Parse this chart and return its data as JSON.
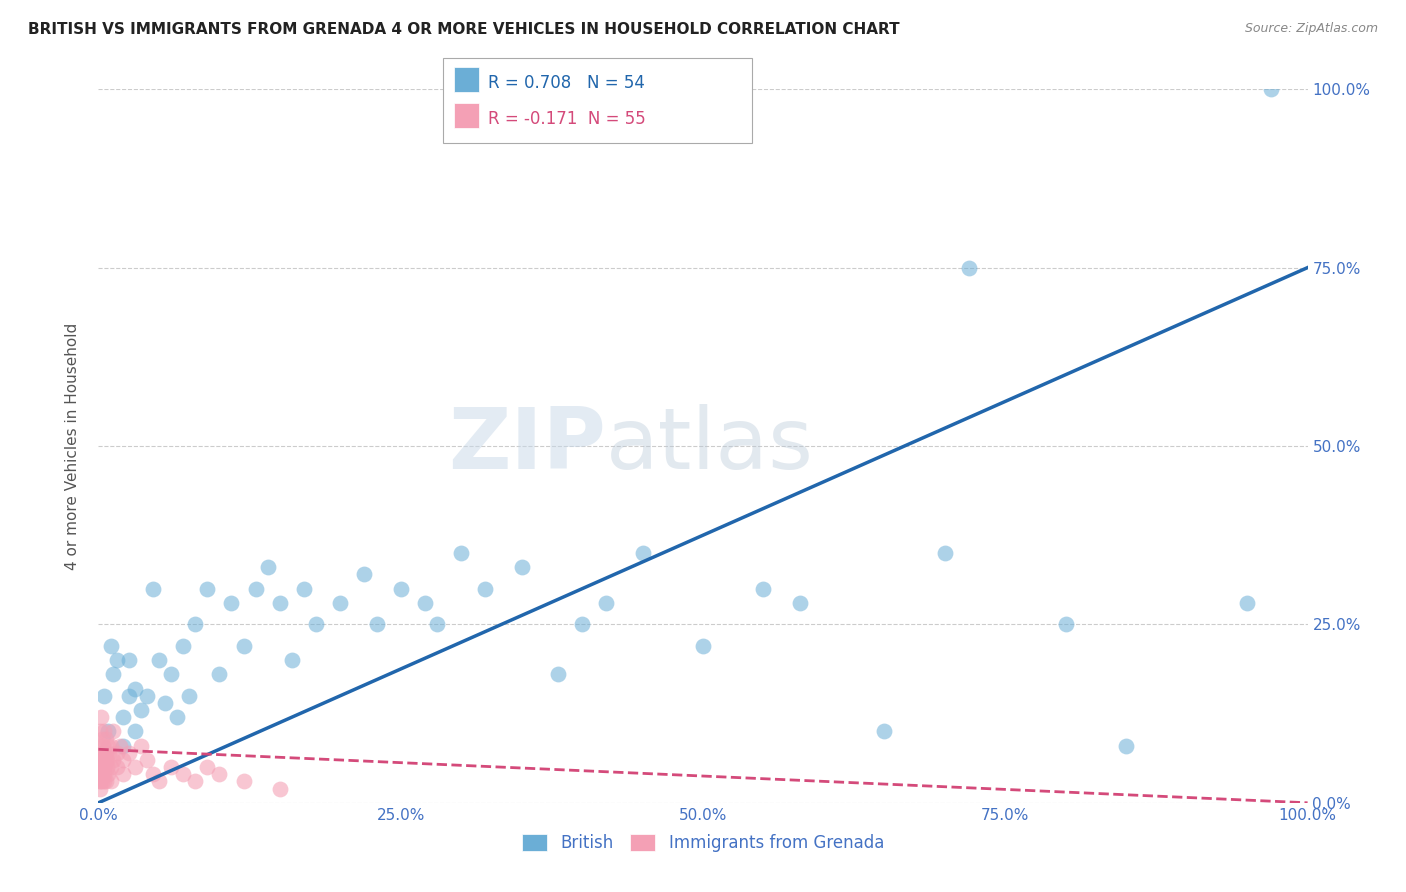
{
  "title": "BRITISH VS IMMIGRANTS FROM GRENADA 4 OR MORE VEHICLES IN HOUSEHOLD CORRELATION CHART",
  "source": "Source: ZipAtlas.com",
  "ylabel": "4 or more Vehicles in Household",
  "legend_entry1": "R = 0.708   N = 54",
  "legend_entry2": "R = -0.171  N = 55",
  "legend_label1": "British",
  "legend_label2": "Immigrants from Grenada",
  "british_color": "#6baed6",
  "grenada_color": "#f4a0b5",
  "british_line_color": "#2166ac",
  "grenada_line_color": "#d44a7a",
  "watermark_zip": "ZIP",
  "watermark_atlas": "atlas",
  "british_x": [
    0.5,
    0.8,
    1.0,
    1.2,
    1.5,
    2.0,
    2.0,
    2.5,
    2.5,
    3.0,
    3.0,
    3.5,
    4.0,
    4.5,
    5.0,
    5.5,
    6.0,
    6.5,
    7.0,
    7.5,
    8.0,
    9.0,
    10.0,
    11.0,
    12.0,
    13.0,
    14.0,
    15.0,
    16.0,
    17.0,
    18.0,
    20.0,
    22.0,
    23.0,
    25.0,
    27.0,
    28.0,
    30.0,
    32.0,
    35.0,
    38.0,
    40.0,
    42.0,
    45.0,
    50.0,
    55.0,
    58.0,
    65.0,
    70.0,
    72.0,
    80.0,
    85.0,
    95.0,
    97.0
  ],
  "british_y": [
    15.0,
    10.0,
    22.0,
    18.0,
    20.0,
    12.0,
    8.0,
    15.0,
    20.0,
    10.0,
    16.0,
    13.0,
    15.0,
    30.0,
    20.0,
    14.0,
    18.0,
    12.0,
    22.0,
    15.0,
    25.0,
    30.0,
    18.0,
    28.0,
    22.0,
    30.0,
    33.0,
    28.0,
    20.0,
    30.0,
    25.0,
    28.0,
    32.0,
    25.0,
    30.0,
    28.0,
    25.0,
    35.0,
    30.0,
    33.0,
    18.0,
    25.0,
    28.0,
    35.0,
    22.0,
    30.0,
    28.0,
    10.0,
    35.0,
    75.0,
    25.0,
    8.0,
    28.0,
    100.0
  ],
  "grenada_x": [
    0.05,
    0.1,
    0.1,
    0.15,
    0.2,
    0.2,
    0.2,
    0.3,
    0.3,
    0.3,
    0.3,
    0.4,
    0.4,
    0.5,
    0.5,
    0.5,
    0.6,
    0.6,
    0.7,
    0.8,
    0.8,
    0.9,
    1.0,
    1.0,
    1.0,
    1.2,
    1.2,
    1.5,
    1.5,
    1.8,
    2.0,
    2.0,
    2.5,
    3.0,
    3.5,
    4.0,
    4.5,
    5.0,
    6.0,
    7.0,
    8.0,
    9.0,
    10.0,
    12.0,
    15.0,
    0.1,
    0.2,
    0.3,
    0.15,
    0.25,
    0.35,
    0.45,
    0.55,
    0.65,
    0.75
  ],
  "grenada_y": [
    5.0,
    8.0,
    3.0,
    10.0,
    6.0,
    12.0,
    4.0,
    7.0,
    5.0,
    9.0,
    3.0,
    8.0,
    6.0,
    10.0,
    5.0,
    3.0,
    7.0,
    9.0,
    6.0,
    8.0,
    4.0,
    7.0,
    5.0,
    8.0,
    3.0,
    6.0,
    10.0,
    7.0,
    5.0,
    8.0,
    6.0,
    4.0,
    7.0,
    5.0,
    8.0,
    6.0,
    4.0,
    3.0,
    5.0,
    4.0,
    3.0,
    5.0,
    4.0,
    3.0,
    2.0,
    2.0,
    4.0,
    6.0,
    3.0,
    5.0,
    7.0,
    4.0,
    6.0,
    3.0,
    5.0
  ],
  "british_line_x": [
    0,
    100
  ],
  "british_line_y": [
    0,
    75
  ],
  "grenada_line_x": [
    0,
    100
  ],
  "grenada_line_y": [
    7.5,
    0
  ],
  "xlim": [
    0,
    100
  ],
  "ylim": [
    0,
    100
  ],
  "xticks": [
    0,
    25,
    50,
    75,
    100
  ],
  "yticks": [
    0,
    25,
    50,
    75,
    100
  ],
  "title_fontsize": 11,
  "source_fontsize": 9,
  "tick_color": "#4472c4"
}
